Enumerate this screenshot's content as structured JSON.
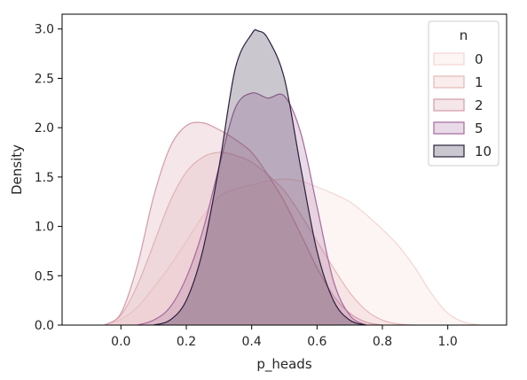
{
  "chart_data": {
    "type": "area",
    "xlabel": "p_heads",
    "ylabel": "Density",
    "xlim": [
      -0.18,
      1.18
    ],
    "ylim": [
      0.0,
      3.15
    ],
    "xticks": [
      "0.0",
      "0.2",
      "0.4",
      "0.6",
      "0.8",
      "1.0"
    ],
    "yticks": [
      "0.0",
      "0.5",
      "1.0",
      "1.5",
      "2.0",
      "2.5",
      "3.0"
    ],
    "grid": false,
    "legend": {
      "title": "n",
      "placement": "top-right"
    },
    "series": [
      {
        "name": "0",
        "color": "#f2d6d2",
        "x": [
          -0.05,
          0.0,
          0.05,
          0.1,
          0.15,
          0.2,
          0.25,
          0.3,
          0.35,
          0.4,
          0.45,
          0.5,
          0.55,
          0.6,
          0.65,
          0.7,
          0.75,
          0.8,
          0.85,
          0.9,
          0.95,
          1.0,
          1.05,
          1.1
        ],
        "y": [
          0.0,
          0.06,
          0.18,
          0.38,
          0.6,
          0.85,
          1.1,
          1.3,
          1.38,
          1.42,
          1.46,
          1.48,
          1.46,
          1.4,
          1.33,
          1.25,
          1.12,
          0.97,
          0.8,
          0.58,
          0.32,
          0.12,
          0.03,
          0.0
        ]
      },
      {
        "name": "1",
        "color": "#e6b8b8",
        "x": [
          -0.05,
          0.0,
          0.05,
          0.1,
          0.15,
          0.2,
          0.25,
          0.3,
          0.35,
          0.4,
          0.45,
          0.5,
          0.55,
          0.6,
          0.65,
          0.7,
          0.75,
          0.8,
          0.85,
          0.9
        ],
        "y": [
          0.0,
          0.1,
          0.4,
          0.82,
          1.25,
          1.55,
          1.7,
          1.75,
          1.72,
          1.65,
          1.52,
          1.36,
          1.12,
          0.85,
          0.58,
          0.33,
          0.15,
          0.05,
          0.01,
          0.0
        ]
      },
      {
        "name": "2",
        "color": "#d49aa8",
        "x": [
          -0.05,
          0.0,
          0.05,
          0.1,
          0.15,
          0.2,
          0.25,
          0.3,
          0.35,
          0.4,
          0.45,
          0.5,
          0.55,
          0.6,
          0.65,
          0.7,
          0.75,
          0.8
        ],
        "y": [
          0.0,
          0.12,
          0.6,
          1.3,
          1.8,
          2.02,
          2.05,
          1.98,
          1.88,
          1.75,
          1.52,
          1.25,
          0.92,
          0.58,
          0.3,
          0.12,
          0.03,
          0.0
        ]
      },
      {
        "name": "5",
        "color": "#a66a9e",
        "x": [
          0.05,
          0.1,
          0.15,
          0.2,
          0.25,
          0.3,
          0.35,
          0.4,
          0.45,
          0.5,
          0.55,
          0.6,
          0.65,
          0.7,
          0.75
        ],
        "y": [
          0.0,
          0.05,
          0.18,
          0.48,
          0.95,
          1.6,
          2.2,
          2.35,
          2.3,
          2.32,
          1.95,
          1.2,
          0.45,
          0.1,
          0.0
        ]
      },
      {
        "name": "10",
        "color": "#2d1e3e",
        "x": [
          0.1,
          0.15,
          0.2,
          0.25,
          0.3,
          0.35,
          0.4,
          0.42,
          0.45,
          0.5,
          0.55,
          0.6,
          0.65,
          0.7,
          0.75
        ],
        "y": [
          0.0,
          0.05,
          0.25,
          0.75,
          1.6,
          2.6,
          2.95,
          2.98,
          2.9,
          2.5,
          1.6,
          0.75,
          0.25,
          0.05,
          0.0
        ]
      }
    ]
  }
}
